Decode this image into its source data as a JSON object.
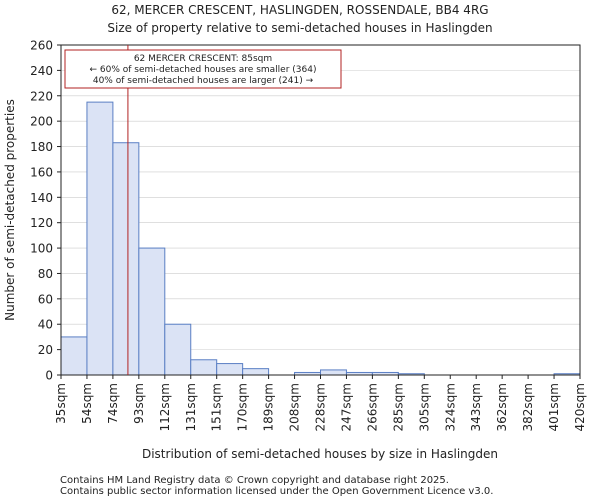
{
  "chart_data": {
    "type": "bar",
    "title_line1": "62, MERCER CRESCENT, HASLINGDEN, ROSSENDALE, BB4 4RG",
    "title_line2": "Size of property relative to semi-detached houses in Haslingden",
    "xlabel": "Distribution of semi-detached houses by size in Haslingden",
    "ylabel": "Number of semi-detached properties",
    "ylim": [
      0,
      260
    ],
    "yticks": [
      0,
      20,
      40,
      60,
      80,
      100,
      120,
      140,
      160,
      180,
      200,
      220,
      240,
      260
    ],
    "bin_edges": [
      "35sqm",
      "54sqm",
      "74sqm",
      "93sqm",
      "112sqm",
      "131sqm",
      "151sqm",
      "170sqm",
      "189sqm",
      "208sqm",
      "228sqm",
      "247sqm",
      "266sqm",
      "285sqm",
      "305sqm",
      "324sqm",
      "343sqm",
      "362sqm",
      "382sqm",
      "401sqm",
      "420sqm"
    ],
    "values": [
      30,
      215,
      183,
      100,
      40,
      12,
      9,
      5,
      0,
      2,
      4,
      2,
      2,
      1,
      0,
      0,
      0,
      0,
      0,
      1
    ],
    "property_size_sqm": 85,
    "annotation": {
      "line1": "62 MERCER CRESCENT: 85sqm",
      "line2": "← 60% of semi-detached houses are smaller (364)",
      "line3": "40% of semi-detached houses are larger (241) →"
    },
    "colors": {
      "bar_fill": "#dbe3f5",
      "bar_edge": "#5a7fc4",
      "marker": "#b22222",
      "grid": "#cccccc"
    }
  },
  "footer": {
    "line1": "Contains HM Land Registry data © Crown copyright and database right 2025.",
    "line2": "Contains public sector information licensed under the Open Government Licence v3.0."
  }
}
